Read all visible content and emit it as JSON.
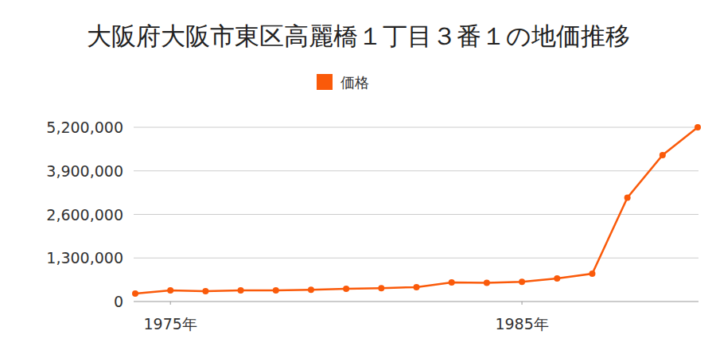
{
  "chart_data": {
    "type": "line",
    "title": "大阪府大阪市東区高麗橋１丁目３番１の地価推移",
    "x": [
      1974,
      1975,
      1976,
      1977,
      1978,
      1979,
      1980,
      1981,
      1982,
      1983,
      1984,
      1985,
      1986,
      1987,
      1988,
      1989,
      1990
    ],
    "series": [
      {
        "name": "価格",
        "color": "#fa5a0a",
        "marker": "circle",
        "values": [
          240000,
          330000,
          310000,
          330000,
          330000,
          350000,
          380000,
          400000,
          430000,
          570000,
          560000,
          590000,
          690000,
          830000,
          3100000,
          4370000,
          5200000
        ]
      }
    ],
    "xlim": [
      1974,
      1990
    ],
    "xticks": [
      {
        "value": 1975,
        "label": "1975年"
      },
      {
        "value": 1985,
        "label": "1985年"
      }
    ],
    "ylim": [
      0,
      5200000
    ],
    "yticks": [
      0,
      {
        "value": 1300000,
        "label": "1,300,000"
      },
      {
        "value": 2600000,
        "label": "2,600,000"
      },
      {
        "value": 3900000,
        "label": "3,900,000"
      },
      {
        "value": 5200000,
        "label": "5,200,000"
      }
    ],
    "grid": true,
    "legend": "top"
  }
}
